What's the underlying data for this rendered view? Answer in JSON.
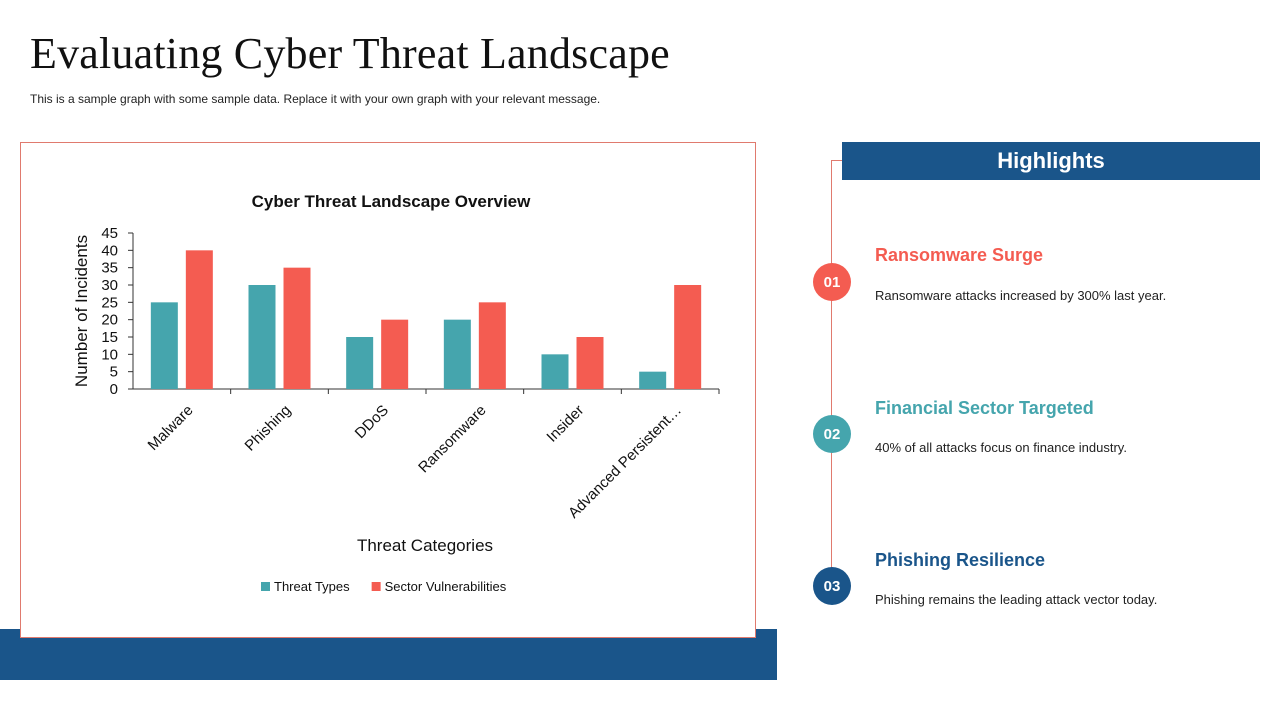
{
  "page": {
    "title": "Evaluating Cyber Threat Landscape",
    "subtitle": "This is a  sample graph with some sample data. Replace it with your own graph with your relevant message."
  },
  "colors": {
    "primary_blue": "#1a558a",
    "teal": "#45a5ad",
    "coral": "#f45c51",
    "border": "#e07a6e"
  },
  "chart_data": {
    "type": "bar",
    "title": "Cyber Threat Landscape Overview",
    "xlabel": "Threat Categories",
    "ylabel": "Number of Incidents",
    "ylim": [
      0,
      45
    ],
    "yticks": [
      0,
      5,
      10,
      15,
      20,
      25,
      30,
      35,
      40,
      45
    ],
    "categories": [
      "Malware",
      "Phishing",
      "DDoS",
      "Ransomware",
      "Insider",
      "Advanced Persistent…"
    ],
    "series": [
      {
        "name": "Threat Types",
        "color": "#45a5ad",
        "values": [
          25,
          30,
          15,
          20,
          10,
          5
        ]
      },
      {
        "name": "Sector Vulnerabilities",
        "color": "#f45c51",
        "values": [
          40,
          35,
          20,
          25,
          15,
          30
        ]
      }
    ],
    "legend": "bottom",
    "grid": false
  },
  "highlights": {
    "header": "Highlights",
    "items": [
      {
        "num": "01",
        "title": "Ransomware  Surge",
        "desc": "Ransomware attacks increased by 300% last year.",
        "color": "#f45c51"
      },
      {
        "num": "02",
        "title": "Financial  Sector Targeted",
        "desc": "40% of all attacks focus on finance industry.",
        "color": "#45a5ad"
      },
      {
        "num": "03",
        "title": "Phishing  Resilience",
        "desc": "Phishing remains the leading attack vector today.",
        "color": "#1a558a"
      }
    ]
  }
}
